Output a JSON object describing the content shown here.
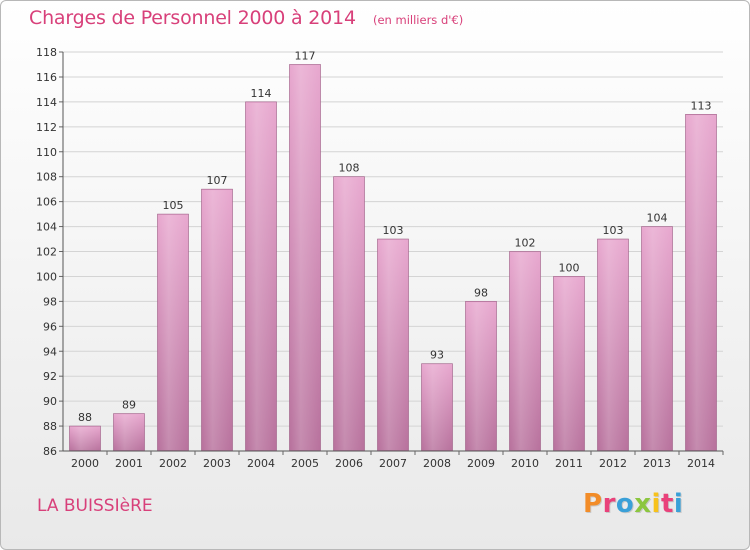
{
  "header": {
    "title": "Charges de Personnel 2000 à 2014",
    "subtitle": "(en milliers d'€)"
  },
  "footer": {
    "commune": "LA BUISSIèRE",
    "logo": "Proxiti",
    "logo_colors": [
      "#f28c28",
      "#e9417a",
      "#3aa0d8",
      "#8cc63f",
      "#f7c21c",
      "#e9417a",
      "#3aa0d8"
    ]
  },
  "chart_data": {
    "type": "bar",
    "categories": [
      "2000",
      "2001",
      "2002",
      "2003",
      "2004",
      "2005",
      "2006",
      "2007",
      "2008",
      "2009",
      "2010",
      "2011",
      "2012",
      "2013",
      "2014"
    ],
    "values": [
      88,
      89,
      105,
      107,
      114,
      117,
      108,
      103,
      93,
      98,
      102,
      100,
      103,
      104,
      113
    ],
    "ylim": [
      86,
      118
    ],
    "yticks": [
      86,
      88,
      90,
      92,
      94,
      96,
      98,
      100,
      102,
      104,
      106,
      108,
      110,
      112,
      114,
      116,
      118
    ],
    "grid": true,
    "bar_color_top": "#e8a8cf",
    "bar_color_bottom": "#b8729d"
  }
}
